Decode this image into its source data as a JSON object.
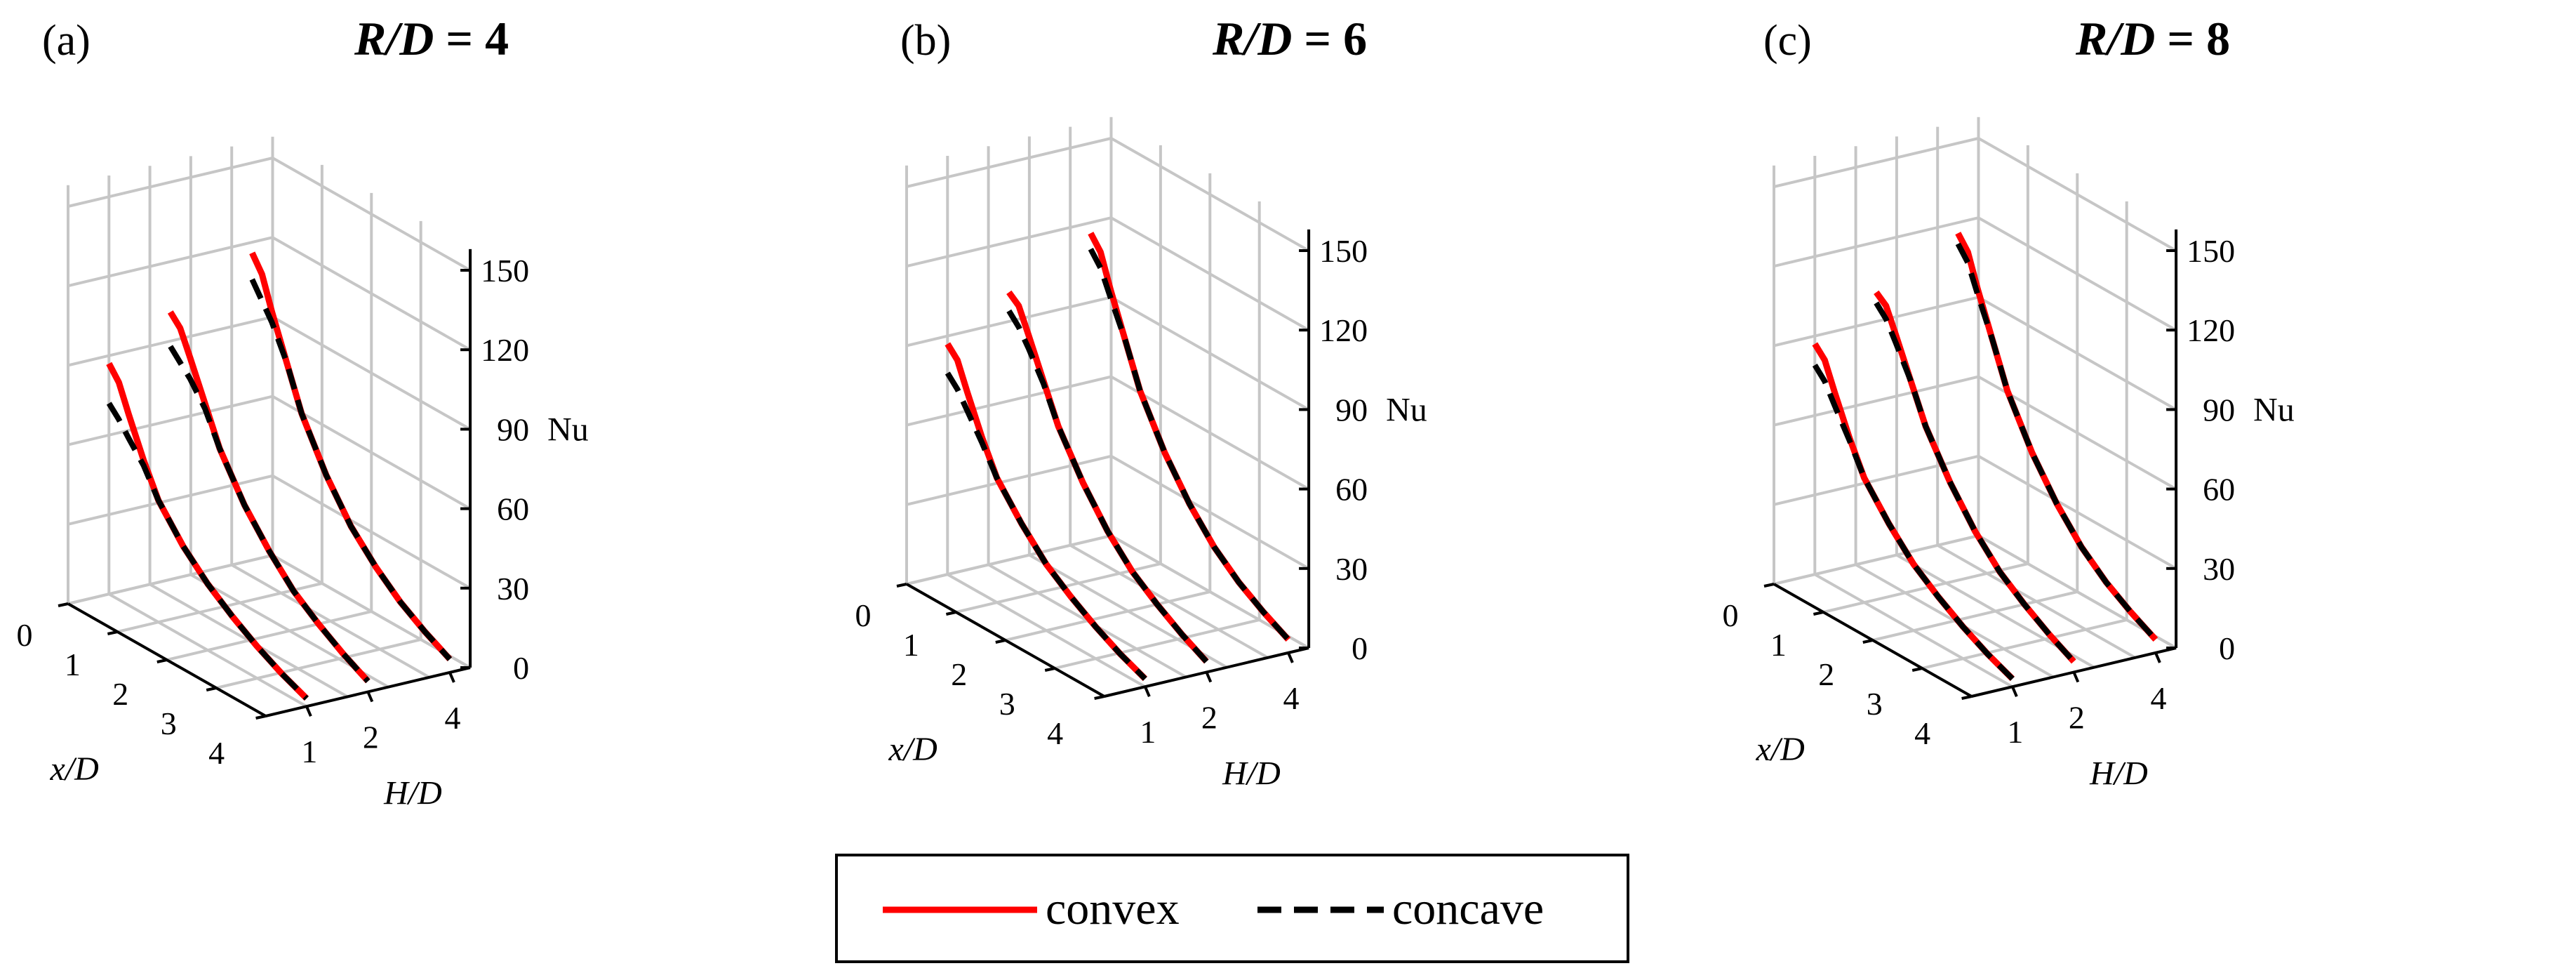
{
  "chart_data": [
    {
      "type": "line3d",
      "panel_label": "(a)",
      "title_var": "R/D",
      "title_eq": " = 4",
      "xlabel": "x/D",
      "ylabel": "H/D",
      "zlabel": "Nu",
      "x_ticks": [
        "0",
        "1",
        "2",
        "3",
        "4"
      ],
      "y_ticks": [
        "1",
        "2",
        "4"
      ],
      "z_ticks": [
        "0",
        "30",
        "60",
        "90",
        "120",
        "150"
      ],
      "x_range": [
        0,
        4
      ],
      "z_range": [
        0,
        150
      ],
      "series": [
        {
          "name": "convex",
          "H_D": 1,
          "x": [
            0,
            0.2,
            0.4,
            0.7,
            1,
            1.5,
            2,
            2.5,
            3,
            3.5,
            4
          ],
          "Nu": [
            87,
            82,
            72,
            58,
            46,
            34,
            25,
            18,
            12,
            7,
            3
          ]
        },
        {
          "name": "concave",
          "H_D": 1,
          "x": [
            0,
            0.2,
            0.4,
            0.7,
            1,
            1.5,
            2,
            2.5,
            3,
            3.5,
            4
          ],
          "Nu": [
            72,
            68,
            63,
            56,
            46,
            34,
            25,
            18,
            12,
            7,
            3
          ]
        },
        {
          "name": "convex",
          "H_D": 2,
          "x": [
            0,
            0.2,
            0.4,
            0.7,
            1,
            1.5,
            2,
            2.5,
            3,
            3.5,
            4
          ],
          "Nu": [
            101,
            97,
            88,
            74,
            60,
            44,
            32,
            22,
            15,
            9,
            4
          ]
        },
        {
          "name": "concave",
          "H_D": 2,
          "x": [
            0,
            0.2,
            0.4,
            0.7,
            1,
            1.5,
            2,
            2.5,
            3,
            3.5,
            4
          ],
          "Nu": [
            88,
            84,
            80,
            72,
            60,
            44,
            32,
            22,
            15,
            9,
            4
          ]
        },
        {
          "name": "convex",
          "H_D": 4,
          "x": [
            0,
            0.2,
            0.4,
            0.7,
            1,
            1.5,
            2,
            2.5,
            3,
            3.5,
            4
          ],
          "Nu": [
            116,
            110,
            98,
            82,
            66,
            48,
            34,
            24,
            16,
            10,
            5
          ]
        },
        {
          "name": "concave",
          "H_D": 4,
          "x": [
            0,
            0.2,
            0.4,
            0.7,
            1,
            1.5,
            2,
            2.5,
            3,
            3.5,
            4
          ],
          "Nu": [
            106,
            100,
            94,
            82,
            66,
            48,
            34,
            24,
            16,
            10,
            5
          ]
        }
      ]
    },
    {
      "type": "line3d",
      "panel_label": "(b)",
      "title_var": "R/D",
      "title_eq": " = 6",
      "xlabel": "x/D",
      "ylabel": "H/D",
      "zlabel": "Nu",
      "x_ticks": [
        "0",
        "1",
        "2",
        "3",
        "4"
      ],
      "y_ticks": [
        "1",
        "2",
        "4"
      ],
      "z_ticks": [
        "0",
        "30",
        "60",
        "90",
        "120",
        "150"
      ],
      "x_range": [
        0,
        4
      ],
      "z_range": [
        0,
        150
      ],
      "series": [
        {
          "name": "convex",
          "H_D": 1,
          "x": [
            0,
            0.2,
            0.4,
            0.7,
            1,
            1.5,
            2,
            2.5,
            3,
            3.5,
            4
          ],
          "Nu": [
            87,
            83,
            73,
            59,
            47,
            35,
            25,
            18,
            12,
            7,
            3
          ]
        },
        {
          "name": "concave",
          "H_D": 1,
          "x": [
            0,
            0.2,
            0.4,
            0.7,
            1,
            1.5,
            2,
            2.5,
            3,
            3.5,
            4
          ],
          "Nu": [
            76,
            72,
            66,
            57,
            47,
            35,
            25,
            18,
            12,
            7,
            3
          ]
        },
        {
          "name": "convex",
          "H_D": 2,
          "x": [
            0,
            0.2,
            0.4,
            0.7,
            1,
            1.5,
            2,
            2.5,
            3,
            3.5,
            4
          ],
          "Nu": [
            101,
            98,
            89,
            75,
            61,
            45,
            32,
            22,
            15,
            9,
            4
          ]
        },
        {
          "name": "concave",
          "H_D": 2,
          "x": [
            0,
            0.2,
            0.4,
            0.7,
            1,
            1.5,
            2,
            2.5,
            3,
            3.5,
            4
          ],
          "Nu": [
            94,
            90,
            84,
            74,
            61,
            45,
            32,
            22,
            15,
            9,
            4
          ]
        },
        {
          "name": "convex",
          "H_D": 4,
          "x": [
            0,
            0.2,
            0.4,
            0.7,
            1,
            1.5,
            2,
            2.5,
            3,
            3.5,
            4
          ],
          "Nu": [
            116,
            111,
            99,
            83,
            67,
            49,
            35,
            24,
            16,
            10,
            5
          ]
        },
        {
          "name": "concave",
          "H_D": 4,
          "x": [
            0,
            0.2,
            0.4,
            0.7,
            1,
            1.5,
            2,
            2.5,
            3,
            3.5,
            4
          ],
          "Nu": [
            110,
            105,
            96,
            83,
            67,
            49,
            35,
            24,
            16,
            10,
            5
          ]
        }
      ]
    },
    {
      "type": "line3d",
      "panel_label": "(c)",
      "title_var": "R/D",
      "title_eq": " = 8",
      "xlabel": "x/D",
      "ylabel": "H/D",
      "zlabel": "Nu",
      "x_ticks": [
        "0",
        "1",
        "2",
        "3",
        "4"
      ],
      "y_ticks": [
        "1",
        "2",
        "4"
      ],
      "z_ticks": [
        "0",
        "30",
        "60",
        "90",
        "120",
        "150"
      ],
      "x_range": [
        0,
        4
      ],
      "z_range": [
        0,
        150
      ],
      "series": [
        {
          "name": "convex",
          "H_D": 1,
          "x": [
            0,
            0.2,
            0.4,
            0.7,
            1,
            1.5,
            2,
            2.5,
            3,
            3.5,
            4
          ],
          "Nu": [
            87,
            83,
            73,
            59,
            47,
            35,
            25,
            18,
            12,
            7,
            3
          ]
        },
        {
          "name": "concave",
          "H_D": 1,
          "x": [
            0,
            0.2,
            0.4,
            0.7,
            1,
            1.5,
            2,
            2.5,
            3,
            3.5,
            4
          ],
          "Nu": [
            79,
            75,
            68,
            58,
            47,
            35,
            25,
            18,
            12,
            7,
            3
          ]
        },
        {
          "name": "convex",
          "H_D": 2,
          "x": [
            0,
            0.2,
            0.4,
            0.7,
            1,
            1.5,
            2,
            2.5,
            3,
            3.5,
            4
          ],
          "Nu": [
            101,
            98,
            89,
            75,
            61,
            45,
            32,
            22,
            15,
            9,
            4
          ]
        },
        {
          "name": "concave",
          "H_D": 2,
          "x": [
            0,
            0.2,
            0.4,
            0.7,
            1,
            1.5,
            2,
            2.5,
            3,
            3.5,
            4
          ],
          "Nu": [
            97,
            93,
            86,
            75,
            61,
            45,
            32,
            22,
            15,
            9,
            4
          ]
        },
        {
          "name": "convex",
          "H_D": 4,
          "x": [
            0,
            0.2,
            0.4,
            0.7,
            1,
            1.5,
            2,
            2.5,
            3,
            3.5,
            4
          ],
          "Nu": [
            116,
            111,
            99,
            83,
            67,
            49,
            35,
            24,
            16,
            10,
            5
          ]
        },
        {
          "name": "concave",
          "H_D": 4,
          "x": [
            0,
            0.2,
            0.4,
            0.7,
            1,
            1.5,
            2,
            2.5,
            3,
            3.5,
            4
          ],
          "Nu": [
            112,
            107,
            97,
            83,
            67,
            49,
            35,
            24,
            16,
            10,
            5
          ]
        }
      ]
    }
  ],
  "legend": {
    "items": [
      {
        "label": "convex",
        "color": "#ff0000",
        "style": "solid"
      },
      {
        "label": "concave",
        "color": "#000000",
        "style": "dashed"
      }
    ]
  },
  "colors": {
    "convex": "#ff0000",
    "concave": "#000000",
    "grid": "#c6c6c6"
  }
}
